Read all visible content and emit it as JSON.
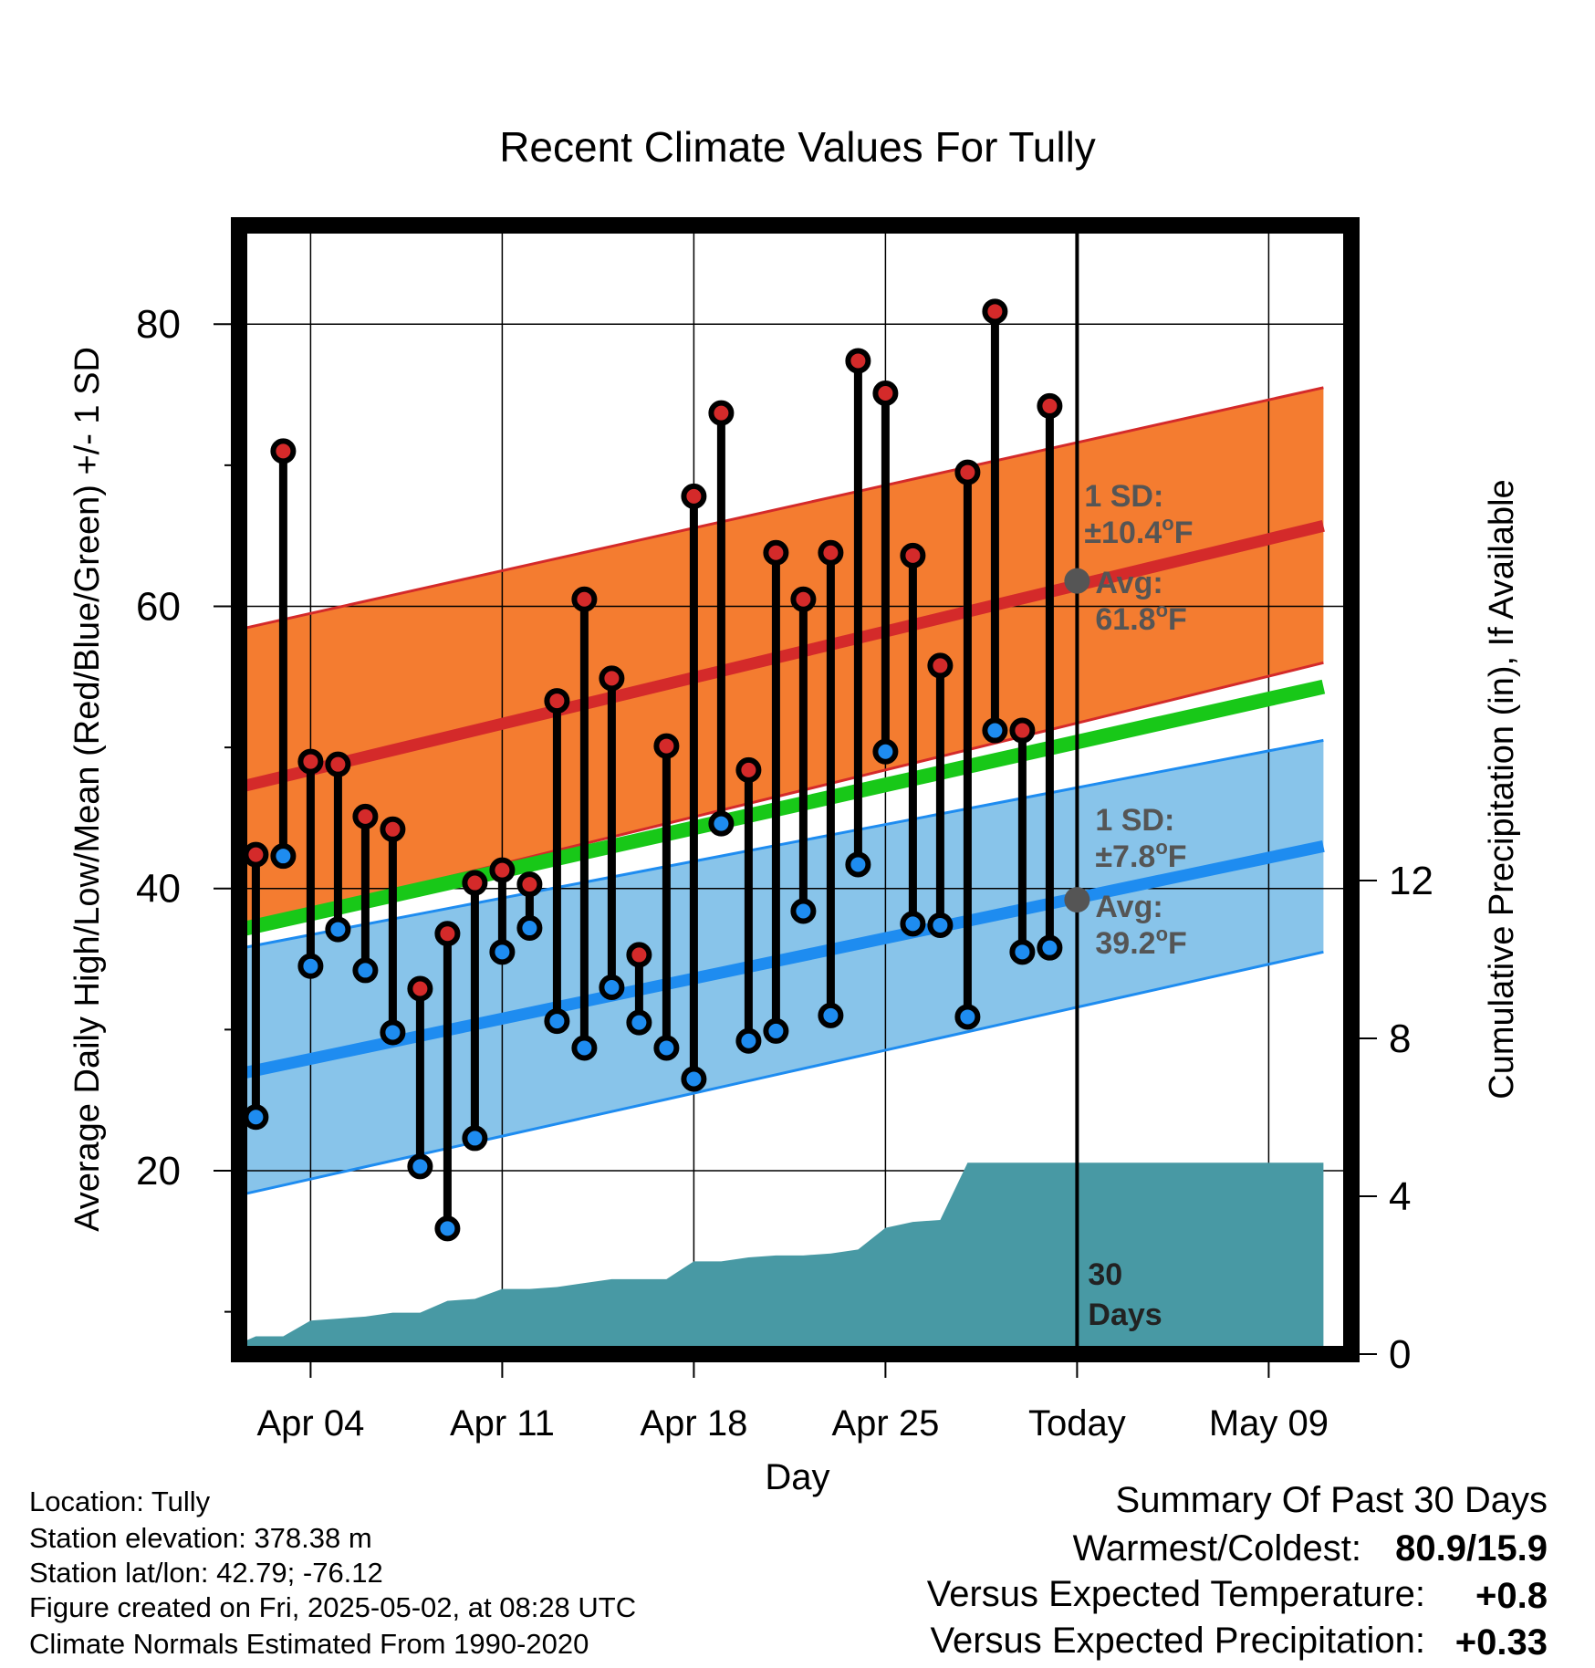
{
  "chart_data": {
    "type": "line",
    "title": "Recent Climate Values For Tully",
    "xlabel": "Day",
    "ylabel": "Average Daily High/Low/Mean (Red/Blue/Green) +/- 1 SD",
    "y2label": "Cumulative Precipitation (in), If Available",
    "x_start": "Apr 01",
    "x_end": "May 11",
    "today_index": 31,
    "ylim": [
      7,
      87
    ],
    "y_ticks": [
      20,
      40,
      60,
      80
    ],
    "y2lim": [
      0,
      28.6
    ],
    "y2_ticks": [
      0,
      4,
      8,
      12
    ],
    "x_ticks": [
      {
        "index": 3,
        "label": "Apr 04"
      },
      {
        "index": 10,
        "label": "Apr 11"
      },
      {
        "index": 17,
        "label": "Apr 18"
      },
      {
        "index": 24,
        "label": "Apr 25"
      },
      {
        "index": 31,
        "label": "Today"
      },
      {
        "index": 38,
        "label": "May 09"
      }
    ],
    "grid": true,
    "colors": {
      "high": "#d42a2a",
      "low": "#1e8cf0",
      "mean": "#18c818",
      "high_band": "#f47c30",
      "low_band": "#88c4ea",
      "precip": "#4899a4",
      "annotation": "#555555"
    },
    "normals": {
      "x": [
        0,
        40
      ],
      "high_avg": [
        47.0,
        65.7
      ],
      "high_upper": [
        58.2,
        75.5
      ],
      "high_lower": [
        37.0,
        56.0
      ],
      "low_avg": [
        26.7,
        43.0
      ],
      "low_upper": [
        35.6,
        50.5
      ],
      "low_lower": [
        18.1,
        35.5
      ],
      "mean_avg": [
        36.9,
        54.3
      ]
    },
    "series": [
      {
        "name": "High",
        "x": [
          1,
          2,
          3,
          4,
          5,
          6,
          7,
          8,
          9,
          10,
          11,
          12,
          13,
          14,
          15,
          16,
          17,
          18,
          19,
          20,
          21,
          22,
          23,
          24,
          25,
          26,
          27,
          28,
          29,
          30
        ],
        "values": [
          42.4,
          71.0,
          49.0,
          48.8,
          45.1,
          44.2,
          32.9,
          36.8,
          40.4,
          41.3,
          40.3,
          53.3,
          60.5,
          54.9,
          35.3,
          50.1,
          67.8,
          73.7,
          48.4,
          63.8,
          60.5,
          63.8,
          77.4,
          75.1,
          63.6,
          55.8,
          69.5,
          80.9,
          51.2,
          74.2
        ]
      },
      {
        "name": "Low",
        "x": [
          1,
          2,
          3,
          4,
          5,
          6,
          7,
          8,
          9,
          10,
          11,
          12,
          13,
          14,
          15,
          16,
          17,
          18,
          19,
          20,
          21,
          22,
          23,
          24,
          25,
          26,
          27,
          28,
          29,
          30
        ],
        "values": [
          23.8,
          42.3,
          34.5,
          37.1,
          34.2,
          29.8,
          20.3,
          15.9,
          22.3,
          35.5,
          37.2,
          30.6,
          28.7,
          33.0,
          30.5,
          28.7,
          26.5,
          44.6,
          29.2,
          29.9,
          38.4,
          31.0,
          41.7,
          49.7,
          37.5,
          37.4,
          30.9,
          51.2,
          35.5,
          35.8
        ]
      },
      {
        "name": "Cumulative Precipitation",
        "x": [
          0,
          0.5,
          1,
          2,
          3,
          4,
          5,
          6,
          7,
          8,
          9,
          10,
          11,
          12,
          13,
          14,
          15,
          16,
          17,
          18,
          19,
          20,
          21,
          22,
          23,
          24,
          25,
          26,
          27,
          28,
          29,
          30,
          31,
          40
        ],
        "values": [
          0.1,
          0.3,
          0.45,
          0.45,
          0.85,
          0.9,
          0.95,
          1.05,
          1.05,
          1.35,
          1.4,
          1.65,
          1.65,
          1.7,
          1.8,
          1.9,
          1.9,
          1.9,
          2.35,
          2.35,
          2.45,
          2.5,
          2.5,
          2.55,
          2.65,
          3.2,
          3.35,
          3.4,
          4.85,
          4.85,
          4.85,
          4.85,
          4.85,
          4.85
        ]
      }
    ],
    "annotations": {
      "high_sd_label": "1 SD:",
      "high_sd_value": "±10.4",
      "high_avg_label": "Avg:",
      "high_avg_value": "61.8",
      "high_avg_point": 61.8,
      "low_sd_label": "1 SD:",
      "low_sd_value": "±7.8",
      "low_avg_label": "Avg:",
      "low_avg_value": "39.2",
      "low_avg_point": 39.2,
      "degree_symbol": "o",
      "unit_letter": "F",
      "days_label_1": "30",
      "days_label_2": "Days"
    }
  },
  "station_info": {
    "location": "Location: Tully",
    "elevation": "Station elevation: 378.38 m",
    "latlon": "Station lat/lon: 42.79; -76.12",
    "created": "Figure created on Fri, 2025-05-02, at 08:28 UTC",
    "normals": "Climate Normals Estimated From 1990-2020"
  },
  "summary": {
    "title": "Summary Of Past 30 Days",
    "warmest_label": "Warmest/Coldest:",
    "warmest_value": "80.9/15.9",
    "temp_label": "Versus Expected Temperature:",
    "temp_value": "+0.8",
    "precip_label": "Versus Expected Precipitation:",
    "precip_value": "+0.33",
    "temp_color": "#d42a2a",
    "precip_color": "#18b818"
  }
}
